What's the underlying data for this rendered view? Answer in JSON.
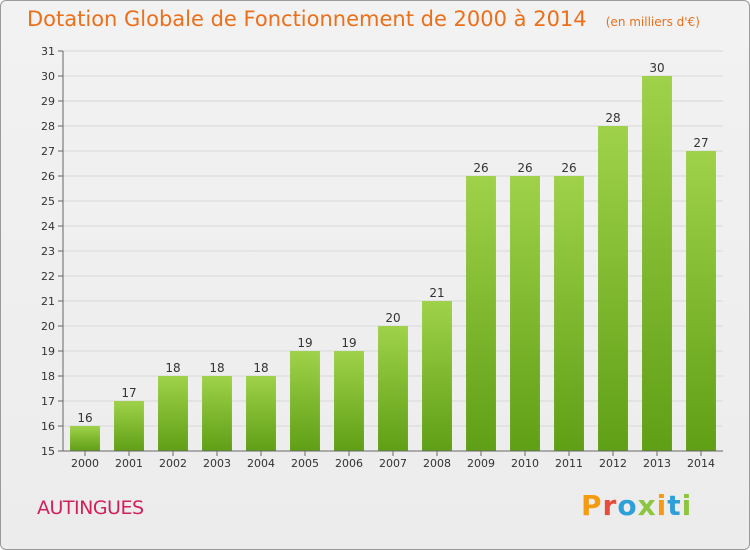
{
  "header": {
    "title": "Dotation Globale de Fonctionnement de 2000 à 2014",
    "unit": "(en milliers d'€)"
  },
  "footer": {
    "commune": "AUTINGUES",
    "logo_text": "Proxiti"
  },
  "colors": {
    "title": "#ec6f1a",
    "commune": "#d0215a",
    "bar_top": "#9fd24a",
    "bar_bottom": "#5f9f16",
    "axis": "#666666",
    "grid": "#d8d8d8",
    "logo_letters": [
      "#f39c12",
      "#e74c3c",
      "#2e9fd8",
      "#8cc63f",
      "#f39c12",
      "#2e9fd8",
      "#8cc63f"
    ]
  },
  "chart_data": {
    "type": "bar",
    "title": "Dotation Globale de Fonctionnement de 2000 à 2014",
    "subtitle": "(en milliers d'€)",
    "categories": [
      "2000",
      "2001",
      "2002",
      "2003",
      "2004",
      "2005",
      "2006",
      "2007",
      "2008",
      "2009",
      "2010",
      "2011",
      "2012",
      "2013",
      "2014"
    ],
    "values": [
      16,
      17,
      18,
      18,
      18,
      19,
      19,
      20,
      21,
      26,
      26,
      26,
      28,
      30,
      27
    ],
    "ylim": [
      15,
      31
    ],
    "yticks": [
      15,
      16,
      17,
      18,
      19,
      20,
      21,
      22,
      23,
      24,
      25,
      26,
      27,
      28,
      29,
      30,
      31
    ],
    "grid": true,
    "legend": "none"
  }
}
